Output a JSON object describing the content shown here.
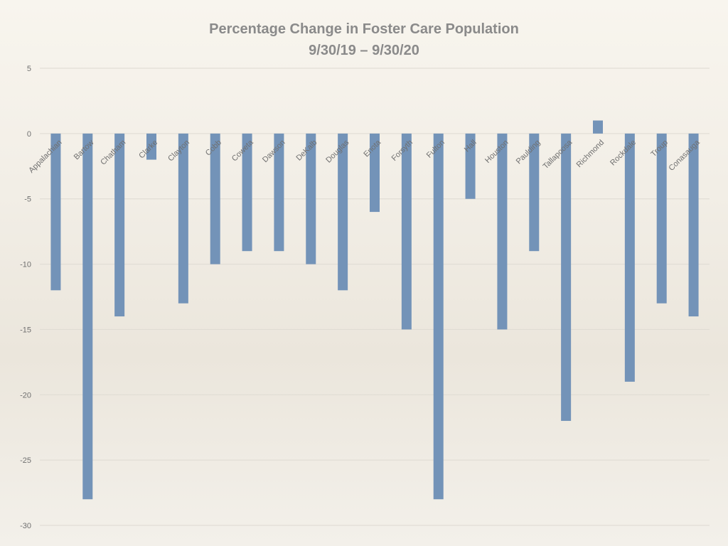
{
  "chart_data": {
    "type": "bar",
    "title": "Percentage Change in Foster Care Population",
    "subtitle": "9/30/19 – 9/30/20",
    "xlabel": "",
    "ylabel": "",
    "ylim": [
      -30,
      5
    ],
    "yticks": [
      5,
      0,
      -5,
      -10,
      -15,
      -20,
      -25,
      -30
    ],
    "grid": true,
    "bar_color": "#7393b8",
    "categories": [
      "Appalachian",
      "Bartow",
      "Chatham",
      "Clarke",
      "Clayton",
      "Cobb",
      "Coweta",
      "Dawson",
      "DeKalb",
      "Douglas",
      "Enota",
      "Forsyth",
      "Fulton",
      "Hall",
      "Houston",
      "Paulding",
      "Tallapoosa",
      "Richmond",
      "Rockdale",
      "Troup",
      "Conasauga"
    ],
    "values": [
      -12,
      -28,
      -14,
      -2,
      -13,
      -10,
      -9,
      -9,
      -10,
      -12,
      -6,
      -15,
      -28,
      -5,
      -15,
      -9,
      -22,
      1,
      -19,
      -13,
      -14
    ]
  }
}
